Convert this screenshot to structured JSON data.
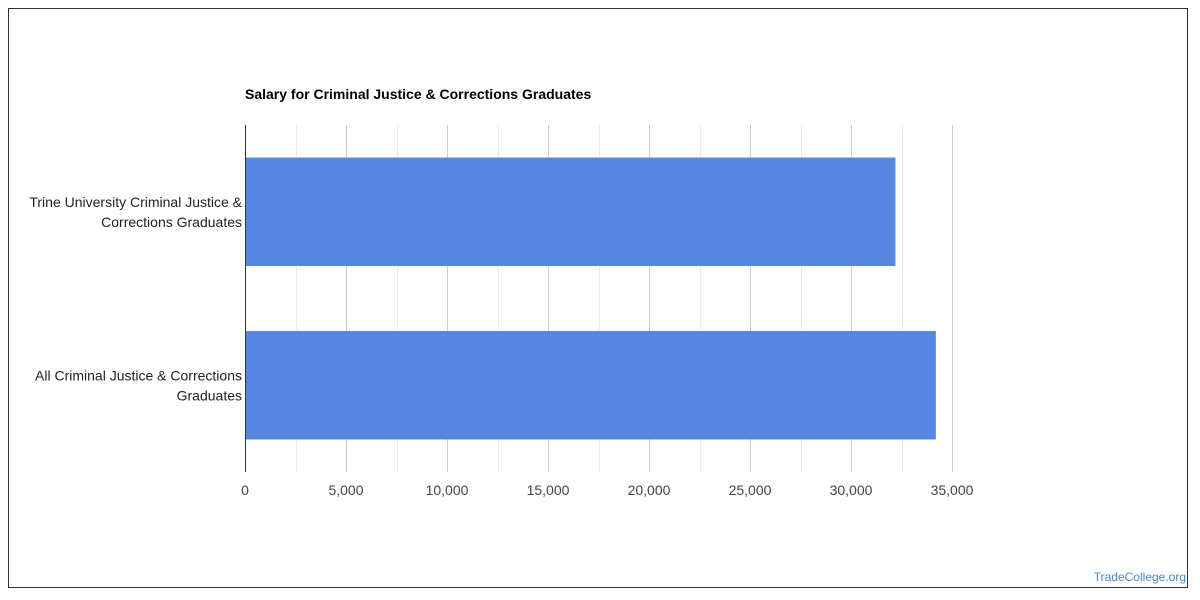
{
  "chart_data": {
    "type": "bar",
    "orientation": "horizontal",
    "title": "Salary for Criminal Justice & Corrections Graduates",
    "categories": [
      [
        "Trine University Criminal Justice &",
        "Corrections Graduates"
      ],
      [
        "All Criminal Justice & Corrections",
        "Graduates"
      ]
    ],
    "values": [
      32200,
      34200
    ],
    "xlim": [
      0,
      35000
    ],
    "tick_values": [
      0,
      5000,
      10000,
      15000,
      20000,
      25000,
      30000,
      35000
    ],
    "tick_labels": [
      "0",
      "5,000",
      "10,000",
      "15,000",
      "20,000",
      "25,000",
      "30,000",
      "35,000"
    ],
    "grid": true,
    "bar_color": "#5486e2"
  },
  "watermark": "TradeCollege.org"
}
